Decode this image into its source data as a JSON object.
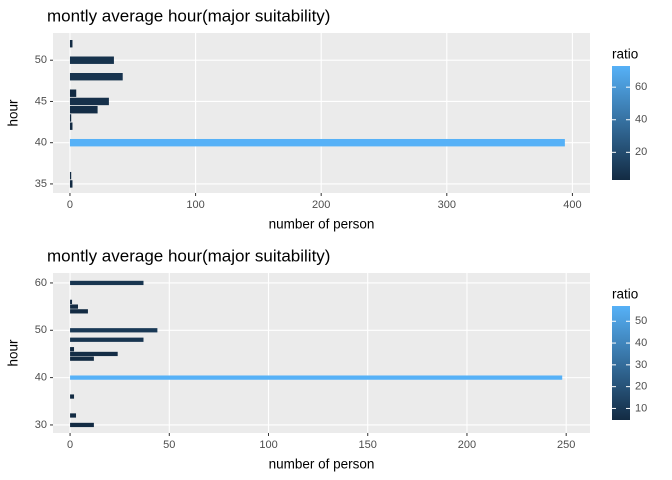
{
  "chart_data": [
    {
      "type": "bar",
      "orientation": "horizontal",
      "title": "montly average hour(major suitability)",
      "x_label": "number of person",
      "y_label": "hour",
      "y": [
        52,
        50,
        48,
        46,
        45,
        44,
        43,
        42,
        40,
        36,
        35
      ],
      "values": [
        2,
        35,
        42,
        5,
        31,
        22,
        1,
        2,
        394,
        1,
        2
      ],
      "xlim": [
        -13.5,
        414
      ],
      "xticks": [
        0,
        100,
        200,
        300,
        400
      ],
      "ylim": [
        33.9,
        53.3
      ],
      "yticks": [
        35,
        40,
        45,
        50
      ],
      "legend": {
        "title": "ratio",
        "clim": [
          3,
          73
        ],
        "ticks": [
          20,
          40,
          60
        ],
        "colors": [
          "#132B43",
          "#56B1F7"
        ]
      }
    },
    {
      "type": "bar",
      "orientation": "horizontal",
      "title": "montly average hour(major suitability)",
      "x_label": "number of person",
      "y_label": "hour",
      "y": [
        60,
        56,
        55,
        54,
        50,
        48,
        46,
        45,
        44,
        40,
        36,
        32,
        30
      ],
      "values": [
        37,
        1,
        4,
        9,
        44,
        37,
        2,
        24,
        12,
        248,
        2,
        3,
        12
      ],
      "xlim": [
        -8.6,
        262
      ],
      "xticks": [
        0,
        50,
        100,
        150,
        200,
        250
      ],
      "ylim": [
        28.3,
        62.1
      ],
      "yticks": [
        30,
        40,
        50,
        60
      ],
      "legend": {
        "title": "ratio",
        "clim": [
          4.7,
          57
        ],
        "ticks": [
          10,
          20,
          30,
          40,
          50
        ],
        "colors": [
          "#132B43",
          "#56B1F7"
        ]
      }
    }
  ]
}
